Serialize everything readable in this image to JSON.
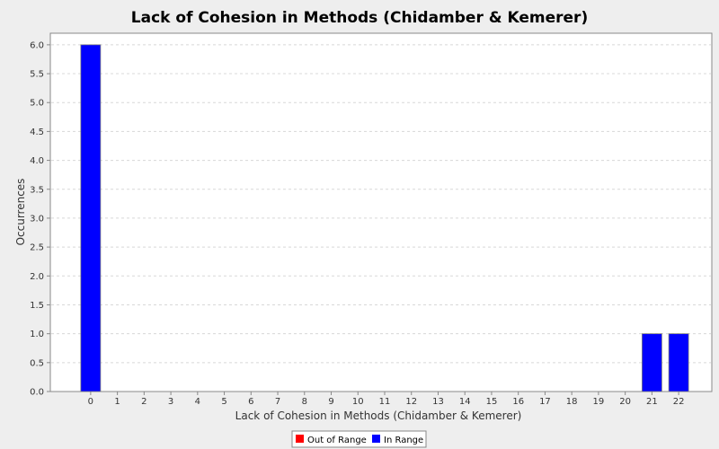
{
  "chart_data": {
    "type": "bar",
    "title": "Lack of Cohesion in Methods (Chidamber & Kemerer)",
    "xlabel": "Lack of Cohesion in Methods (Chidamber & Kemerer)",
    "ylabel": "Occurrences",
    "categories": [
      "0",
      "1",
      "2",
      "3",
      "4",
      "5",
      "6",
      "7",
      "8",
      "9",
      "10",
      "11",
      "12",
      "13",
      "14",
      "15",
      "16",
      "17",
      "18",
      "19",
      "20",
      "21",
      "22"
    ],
    "series": [
      {
        "name": "Out of Range",
        "color": "#ff0000",
        "values": [
          0,
          0,
          0,
          0,
          0,
          0,
          0,
          0,
          0,
          0,
          0,
          0,
          0,
          0,
          0,
          0,
          0,
          0,
          0,
          0,
          0,
          0,
          0
        ]
      },
      {
        "name": "In Range",
        "color": "#0000ff",
        "values": [
          6,
          0,
          0,
          0,
          0,
          0,
          0,
          0,
          0,
          0,
          0,
          0,
          0,
          0,
          0,
          0,
          0,
          0,
          0,
          0,
          0,
          1,
          1
        ]
      }
    ],
    "ylim": [
      0,
      6.2
    ],
    "yticks": [
      "0.0",
      "0.5",
      "1.0",
      "1.5",
      "2.0",
      "2.5",
      "3.0",
      "3.5",
      "4.0",
      "4.5",
      "5.0",
      "5.5",
      "6.0"
    ],
    "grid": true,
    "legend_position": "bottom"
  }
}
